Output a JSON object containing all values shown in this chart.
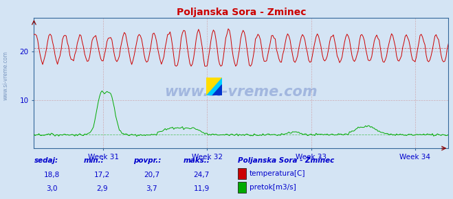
{
  "title": "Poljanska Sora - Zminec",
  "title_color": "#cc0000",
  "bg_color": "#d4e4f4",
  "plot_bg_color": "#d4e4f4",
  "grid_color": "#cc8888",
  "axis_color": "#336699",
  "text_color": "#0000cc",
  "temp_color": "#cc0000",
  "flow_color": "#00aa00",
  "temp_avg": 20.7,
  "temp_min": 17.2,
  "temp_max": 24.7,
  "temp_current": 18.8,
  "flow_avg": 3.7,
  "flow_min": 2.9,
  "flow_max": 11.9,
  "flow_current": 3.0,
  "n_points": 336,
  "weeks": [
    "Week 31",
    "Week 32",
    "Week 33",
    "Week 34"
  ],
  "week_ticks": [
    56,
    140,
    224,
    308
  ],
  "ylim_min": 0,
  "ylim_max": 27,
  "watermark": "www.si-vreme.com",
  "legend_title": "Poljanska Sora - Zminec",
  "legend_items": [
    "temperatura[C]",
    "pretok[m3/s]"
  ],
  "legend_colors": [
    "#cc0000",
    "#00aa00"
  ],
  "stats_headers": [
    "sedaj:",
    "min.:",
    "povpr.:",
    "maks.:"
  ],
  "stats_temp": [
    "18,8",
    "17,2",
    "20,7",
    "24,7"
  ],
  "stats_flow": [
    "3,0",
    "2,9",
    "3,7",
    "11,9"
  ],
  "logo_yellow": "#ffdd00",
  "logo_blue": "#0033cc",
  "logo_cyan": "#00ccff"
}
